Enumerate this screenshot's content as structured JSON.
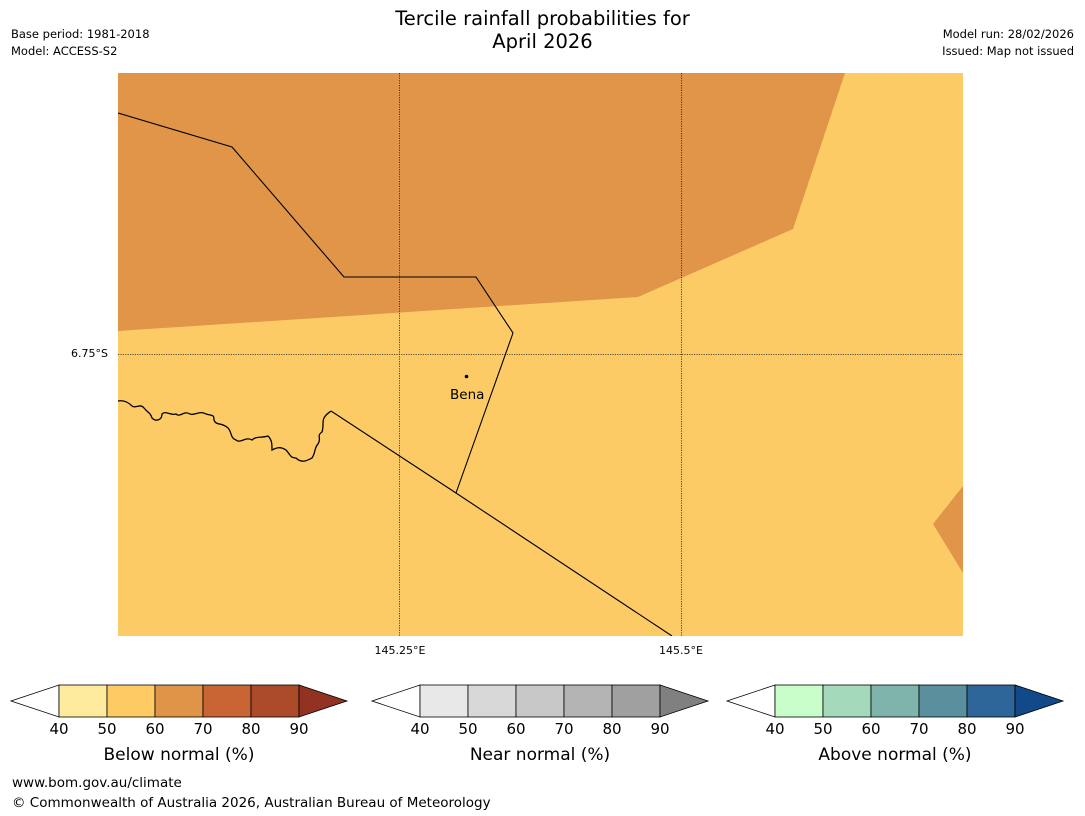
{
  "title_line1": "Tercile rainfall probabilities for",
  "title_line2": "April 2026",
  "meta_left": {
    "base_period": "Base period: 1981-2018",
    "model": "Model: ACCESS-S2"
  },
  "meta_right": {
    "model_run": "Model run: 28/02/2026",
    "issued": "Issued: Map not issued"
  },
  "map": {
    "lat_label": "6.75°S",
    "lon_labels": [
      "145.25°E",
      "145.5°E"
    ],
    "place": "Bena",
    "colors": {
      "light_band": "#fdcb65",
      "mid_band": "#e09548"
    }
  },
  "legends": [
    {
      "title": "Below normal (%)",
      "ticks": [
        "40",
        "50",
        "60",
        "70",
        "80",
        "90"
      ],
      "colors": [
        "#ffffff",
        "#feeb9d",
        "#fdca64",
        "#e09447",
        "#c96534",
        "#ab4b2a",
        "#913222"
      ]
    },
    {
      "title": "Near normal (%)",
      "ticks": [
        "40",
        "50",
        "60",
        "70",
        "80",
        "90"
      ],
      "colors": [
        "#ffffff",
        "#e8e8e8",
        "#d8d8d8",
        "#c8c8c8",
        "#b4b4b4",
        "#a0a0a0",
        "#808080"
      ]
    },
    {
      "title": "Above normal (%)",
      "ticks": [
        "40",
        "50",
        "60",
        "70",
        "80",
        "90"
      ],
      "colors": [
        "#ffffff",
        "#c8fcc8",
        "#a4d9bb",
        "#7fb4ac",
        "#5a909e",
        "#2e6699",
        "#124988"
      ]
    }
  ],
  "footer": {
    "url": "www.bom.gov.au/climate",
    "copyright": "© Commonwealth of Australia 2026, Australian Bureau of Meteorology"
  }
}
